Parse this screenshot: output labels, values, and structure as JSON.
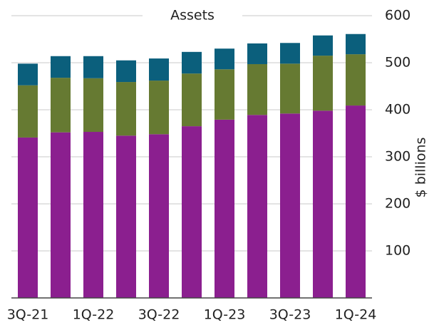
{
  "chart_data": {
    "type": "stacked-bar",
    "title": "Assets",
    "y_label": "$ billions",
    "categories": [
      "3Q-21",
      null,
      "1Q-22",
      null,
      "3Q-22",
      null,
      "1Q-23",
      null,
      "3Q-23",
      null,
      "1Q-24"
    ],
    "series": [
      {
        "color": "#8b1f8f",
        "values": [
          341,
          352,
          353,
          345,
          348,
          365,
          379,
          389,
          392,
          398,
          409
        ]
      },
      {
        "color": "#667a32",
        "values": [
          111,
          116,
          114,
          114,
          114,
          112,
          107,
          108,
          106,
          117,
          109
        ]
      },
      {
        "color": "#0b5f7c",
        "values": [
          46,
          46,
          47,
          46,
          47,
          46,
          44,
          44,
          44,
          43,
          43
        ]
      }
    ],
    "ylim": [
      0,
      600
    ],
    "yticks": [
      100,
      200,
      300,
      400,
      500,
      600
    ],
    "grid": true
  }
}
